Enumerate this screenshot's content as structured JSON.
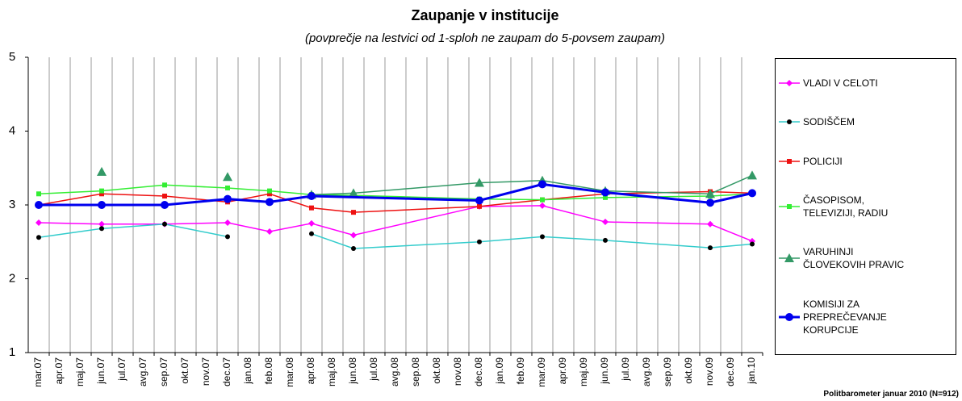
{
  "chart_data": {
    "type": "line",
    "title": "Zaupanje v institucije",
    "subtitle": "(povprečje na lestvici od 1-sploh ne zaupam do 5-povsem zaupam)",
    "footer": "Politbarometer januar 2010 (N=912)",
    "categories": [
      "mar.07",
      "apr.07",
      "maj.07",
      "jun.07",
      "jul.07",
      "avg.07",
      "sep.07",
      "okt.07",
      "nov.07",
      "dec.07",
      "jan.08",
      "feb.08",
      "mar.08",
      "apr.08",
      "maj.08",
      "jun.08",
      "jul.08",
      "avg.08",
      "sep.08",
      "okt.08",
      "nov.08",
      "dec.08",
      "jan.09",
      "feb.09",
      "mar.09",
      "apr.09",
      "maj.09",
      "jun.09",
      "jul.09",
      "avg.09",
      "sep.09",
      "okt.09",
      "nov.09",
      "dec.09",
      "jan.10"
    ],
    "ylim": [
      1,
      5
    ],
    "yticks": [
      1,
      2,
      3,
      4,
      5
    ],
    "grid": "x",
    "series": [
      {
        "name": "VLADI V CELOTI",
        "color": "#ff00ff",
        "marker": "diamond",
        "marker_color": "#ff00ff",
        "width": 1.5,
        "x": [
          "mar.07",
          "jun.07",
          "sep.07",
          "dec.07",
          "feb.08",
          "apr.08",
          "jun.08",
          "dec.08",
          "mar.09",
          "jun.09",
          "nov.09",
          "jan.10"
        ],
        "values": [
          2.76,
          2.74,
          2.74,
          2.76,
          2.64,
          2.75,
          2.59,
          2.98,
          2.99,
          2.77,
          2.74,
          2.51
        ]
      },
      {
        "name": "SODIŠČEM",
        "color": "#33cccc",
        "marker": "circle",
        "marker_color": "#000000",
        "width": 1.5,
        "x": [
          "mar.07",
          "jun.07",
          "sep.07",
          "dec.07",
          "feb.08",
          "apr.08",
          "jun.08",
          "dec.08",
          "mar.09",
          "jun.09",
          "nov.09",
          "jan.10"
        ],
        "values": [
          2.56,
          2.68,
          2.74,
          2.57,
          null,
          2.61,
          2.41,
          2.5,
          2.57,
          2.52,
          2.42,
          2.47
        ]
      },
      {
        "name": "POLICIJI",
        "color": "#ee1111",
        "marker": "square",
        "marker_color": "#ee1111",
        "width": 1.5,
        "x": [
          "mar.07",
          "jun.07",
          "sep.07",
          "dec.07",
          "feb.08",
          "apr.08",
          "jun.08",
          "dec.08",
          "mar.09",
          "jun.09",
          "nov.09",
          "jan.10"
        ],
        "values": [
          3.0,
          3.15,
          3.12,
          3.04,
          3.15,
          2.96,
          2.9,
          2.98,
          3.07,
          3.15,
          3.18,
          3.16
        ]
      },
      {
        "name": "ČASOPISOM, TELEVIZIJI, RADIU",
        "color": "#33ee33",
        "marker": "square",
        "marker_color": "#33ee33",
        "width": 1.5,
        "x": [
          "mar.07",
          "jun.07",
          "sep.07",
          "dec.07",
          "feb.08",
          "apr.08",
          "jun.08",
          "dec.08",
          "mar.09",
          "jun.09",
          "nov.09",
          "jan.10"
        ],
        "values": [
          3.15,
          3.19,
          3.27,
          3.23,
          3.19,
          3.14,
          3.13,
          3.08,
          3.07,
          3.1,
          3.12,
          3.15
        ]
      },
      {
        "name": "VARUHINJI ČLOVEKOVIH PRAVIC",
        "color": "#339966",
        "marker": "triangle",
        "marker_color": "#339966",
        "width": 1.5,
        "x": [
          "jun.07",
          "sep.07",
          "dec.07",
          "feb.08",
          "apr.08",
          "jun.08",
          "dec.08",
          "mar.09",
          "jun.09",
          "nov.09",
          "jan.10"
        ],
        "values": [
          3.45,
          null,
          3.38,
          null,
          3.14,
          3.16,
          3.3,
          3.33,
          3.19,
          3.15,
          3.4
        ]
      },
      {
        "name": "KOMISIJI ZA PREPREČEVANJE KORUPCIJE",
        "color": "#0000ee",
        "marker": "bigcircle",
        "marker_color": "#0000ee",
        "width": 3,
        "x": [
          "mar.07",
          "jun.07",
          "sep.07",
          "dec.07",
          "feb.08",
          "apr.08",
          "dec.08",
          "mar.09",
          "jun.09",
          "nov.09",
          "jan.10"
        ],
        "values": [
          3.0,
          3.0,
          3.0,
          3.08,
          3.04,
          3.12,
          3.06,
          3.28,
          3.17,
          3.03,
          3.16
        ]
      }
    ]
  }
}
